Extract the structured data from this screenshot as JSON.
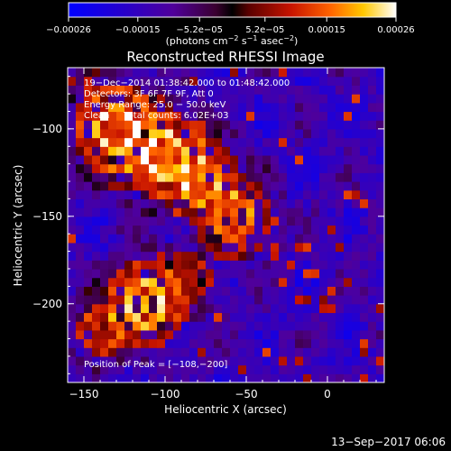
{
  "chart_data": {
    "type": "heatmap",
    "title": "Reconstructed RHESSI Image",
    "xlabel": "Heliocentric X (arcsec)",
    "ylabel": "Heliocentric Y (arcsec)",
    "xlim": [
      -160,
      35
    ],
    "ylim": [
      -245,
      -65
    ],
    "x_ticks": [
      -150,
      -100,
      -50,
      0
    ],
    "x_tick_labels": [
      "−150",
      "−100",
      "−50",
      "0"
    ],
    "y_ticks": [
      -100,
      -150,
      -200
    ],
    "y_tick_labels": [
      "−100",
      "−150",
      "−200"
    ],
    "colorbar": {
      "range": [
        -0.00026,
        0.00026
      ],
      "ticks": [
        -0.00026,
        -0.00015,
        -5.2e-05,
        5.2e-05,
        0.00015,
        0.00026
      ],
      "tick_labels": [
        "−0.00026",
        "−0.00015",
        "−5.2e−05",
        "5.2e−05",
        "0.00015",
        "0.00026"
      ],
      "units_prefix": "(photons cm",
      "units_sup1": "−2",
      "units_mid1": " s",
      "units_sup2": "−1",
      "units_mid2": " asec",
      "units_sup3": "−2",
      "units_suffix": ")"
    },
    "annotations": [
      "19−Dec−2014 01:38:42.000 to 01:48:42.000",
      "Detectors: 3F 6F 7F 9F, Att 0",
      "Energy Range: 25.0 − 50.0 keV",
      "Clean     Total counts: 6.02E+03"
    ],
    "peak_label": "Position of Peak = [−108,−200]",
    "sources": [
      {
        "x": -130,
        "y": -100,
        "amplitude": 1.0,
        "sigma": 18
      },
      {
        "x": -100,
        "y": -115,
        "amplitude": 0.9,
        "sigma": 16
      },
      {
        "x": -78,
        "y": -130,
        "amplitude": 0.7,
        "sigma": 14
      },
      {
        "x": -58,
        "y": -150,
        "amplitude": 0.75,
        "sigma": 14
      },
      {
        "x": -112,
        "y": -200,
        "amplitude": 1.0,
        "sigma": 15
      },
      {
        "x": -140,
        "y": -215,
        "amplitude": 0.55,
        "sigma": 12
      },
      {
        "x": -85,
        "y": -185,
        "amplitude": 0.45,
        "sigma": 12
      }
    ],
    "grid": false
  },
  "footer": {
    "timestamp": "13−Sep−2017 06:06"
  }
}
